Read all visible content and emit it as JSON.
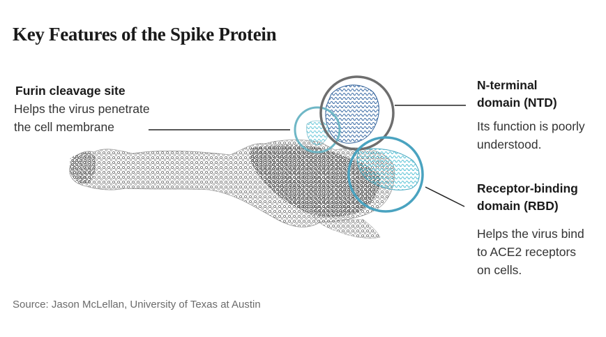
{
  "title": "Key Features of the Spike Protein",
  "annotations": {
    "furin": {
      "title": "Furin cleavage site",
      "desc": [
        "Helps the virus penetrate",
        "the cell membrane"
      ],
      "circle_color": "#6fb7c6"
    },
    "ntd": {
      "title": [
        "N-terminal",
        "domain (NTD)"
      ],
      "desc": [
        "Its function is poorly",
        "understood."
      ],
      "circle_color": "#6e6e6e"
    },
    "rbd": {
      "title": [
        "Receptor-binding",
        "domain (RBD)"
      ],
      "desc": [
        "Helps the virus bind",
        "to ACE2 receptors",
        "on cells."
      ],
      "circle_color": "#4aa3c0"
    }
  },
  "source": "Source: Jason McLellan, University of Texas at Austin"
}
